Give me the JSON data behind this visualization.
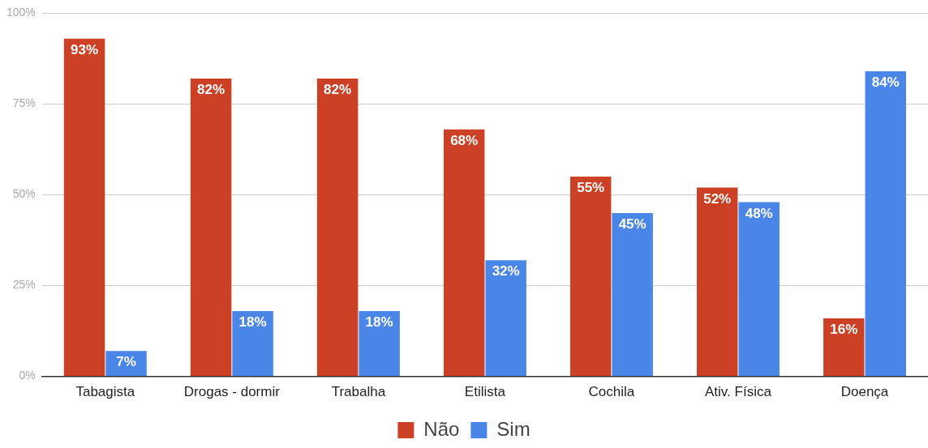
{
  "chart_data": {
    "type": "bar",
    "categories": [
      "Tabagista",
      "Drogas - dormir",
      "Trabalha",
      "Etilista",
      "Cochila",
      "Ativ. Física",
      "Doença"
    ],
    "series": [
      {
        "name": "Não",
        "color": "#cc4125",
        "values": [
          93,
          82,
          82,
          68,
          55,
          52,
          16
        ]
      },
      {
        "name": "Sim",
        "color": "#4a86e8",
        "values": [
          7,
          18,
          18,
          32,
          45,
          48,
          84
        ]
      }
    ],
    "ylim": [
      0,
      100
    ],
    "yticks": [
      {
        "value": 0,
        "label": "0%"
      },
      {
        "value": 25,
        "label": "25%"
      },
      {
        "value": 50,
        "label": "50%"
      },
      {
        "value": 75,
        "label": "75%"
      },
      {
        "value": 100,
        "label": "100%"
      }
    ],
    "grid": "y",
    "legend": "bottom",
    "value_labels": [
      [
        "93%",
        "82%",
        "82%",
        "68%",
        "55%",
        "52%",
        "16%"
      ],
      [
        "7%",
        "18%",
        "18%",
        "32%",
        "45%",
        "48%",
        "84%"
      ]
    ]
  }
}
